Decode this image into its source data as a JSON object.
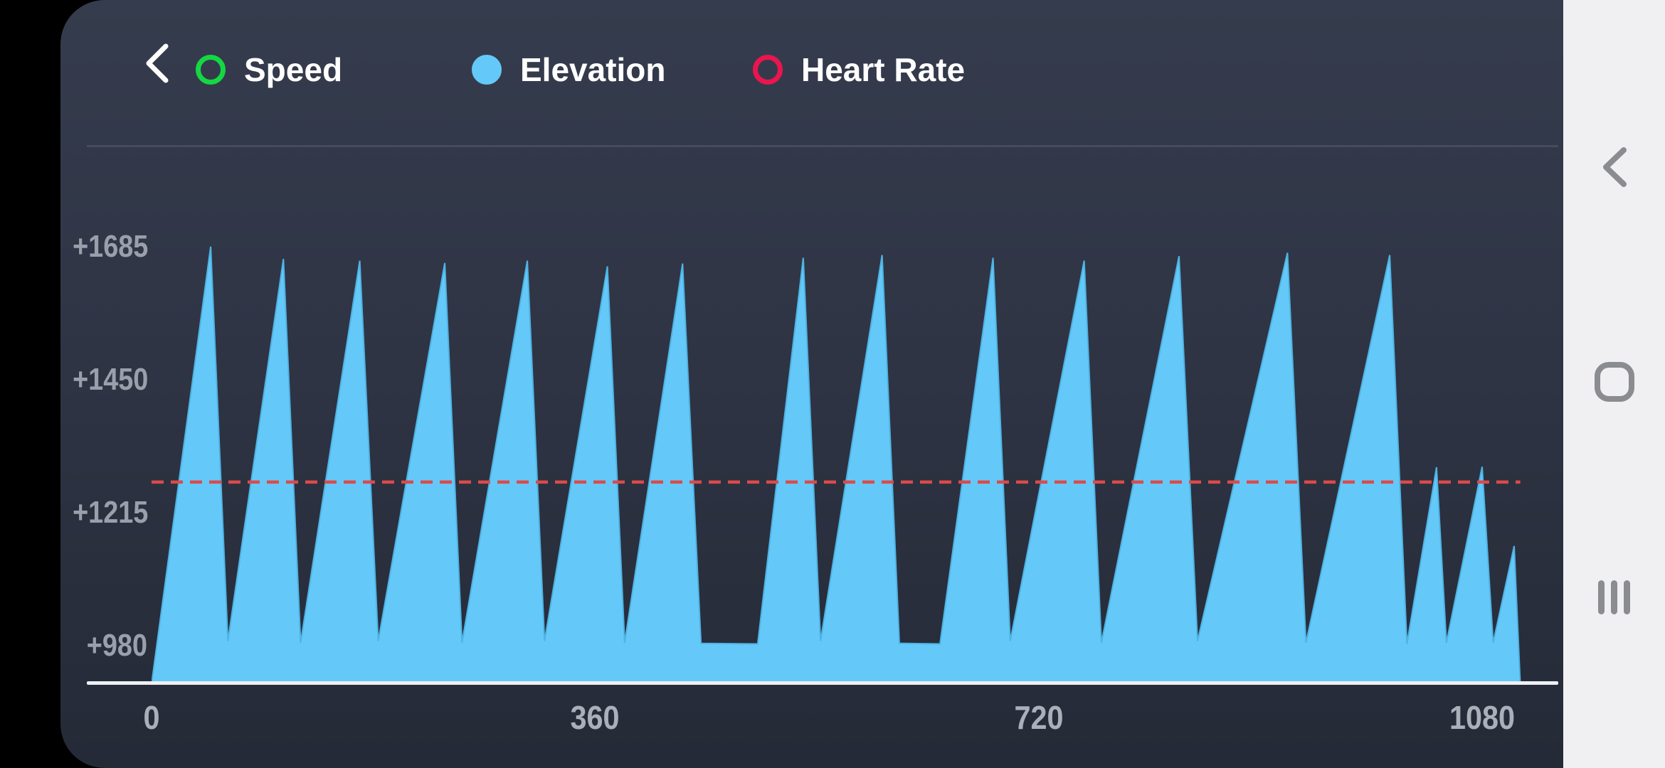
{
  "header": {
    "back_icon": "chevron-left",
    "legend": {
      "items": [
        {
          "label": "Speed",
          "color": "#15d643",
          "filled": false
        },
        {
          "label": "Elevation",
          "color": "#64c9f8",
          "filled": true
        },
        {
          "label": "Heart Rate",
          "color": "#ea1550",
          "filled": false
        }
      ]
    }
  },
  "chart_data": {
    "type": "area",
    "title": "",
    "xlabel": "",
    "ylabel": "",
    "legend_position": "top",
    "grid": false,
    "x_axis_range": [
      0,
      1132
    ],
    "value_axis_range": [
      912,
      1706
    ],
    "x_ticks": [
      {
        "value": 0,
        "label": "0"
      },
      {
        "value": 360,
        "label": "360"
      },
      {
        "value": 720,
        "label": "720"
      },
      {
        "value": 1080,
        "label": "1080"
      }
    ],
    "y_ticks": [
      {
        "value": 1685,
        "label": "+1685"
      },
      {
        "value": 1450,
        "label": "+1450"
      },
      {
        "value": 1215,
        "label": "+1215"
      },
      {
        "value": 980,
        "label": "+980"
      }
    ],
    "reference_line": {
      "value": 1269,
      "color": "#da4b4b",
      "style": "dashed",
      "extent": [
        0,
        1111
      ]
    },
    "series": [
      {
        "name": "Elevation",
        "color": "#64c9f8",
        "edge_color": "#4fb3e3",
        "points": [
          [
            0,
            912
          ],
          [
            48,
            1685
          ],
          [
            62,
            988
          ],
          [
            107,
            1663
          ],
          [
            121,
            985
          ],
          [
            169,
            1660
          ],
          [
            184,
            988
          ],
          [
            238,
            1656
          ],
          [
            252,
            985
          ],
          [
            305,
            1660
          ],
          [
            319,
            988
          ],
          [
            370,
            1650
          ],
          [
            384,
            985
          ],
          [
            431,
            1655
          ],
          [
            446,
            984
          ],
          [
            492,
            983
          ],
          [
            529,
            1665
          ],
          [
            543,
            988
          ],
          [
            593,
            1670
          ],
          [
            607,
            984
          ],
          [
            640,
            983
          ],
          [
            683,
            1665
          ],
          [
            697,
            988
          ],
          [
            757,
            1660
          ],
          [
            771,
            985
          ],
          [
            834,
            1668
          ],
          [
            849,
            988
          ],
          [
            922,
            1674
          ],
          [
            937,
            985
          ],
          [
            1005,
            1670
          ],
          [
            1019,
            983
          ],
          [
            1043,
            1295
          ],
          [
            1051,
            985
          ],
          [
            1080,
            1296
          ],
          [
            1089,
            985
          ],
          [
            1106,
            1156
          ],
          [
            1111,
            912
          ]
        ]
      }
    ]
  },
  "nav_bar": {
    "buttons": [
      {
        "id": "back",
        "icon": "chevron-left"
      },
      {
        "id": "home",
        "icon": "rounded-square"
      },
      {
        "id": "recents",
        "icon": "three-bars"
      }
    ]
  },
  "colors": {
    "panel_top": "#353c4d",
    "panel_bottom": "#252a37",
    "axis_line": "#eef0f4",
    "divider": "#454c5c",
    "y_label": "#9aa0ab",
    "x_label": "#aab0ba",
    "nav_rail_bg": "#f0f0f2",
    "nav_icon": "#8a8c8f"
  }
}
